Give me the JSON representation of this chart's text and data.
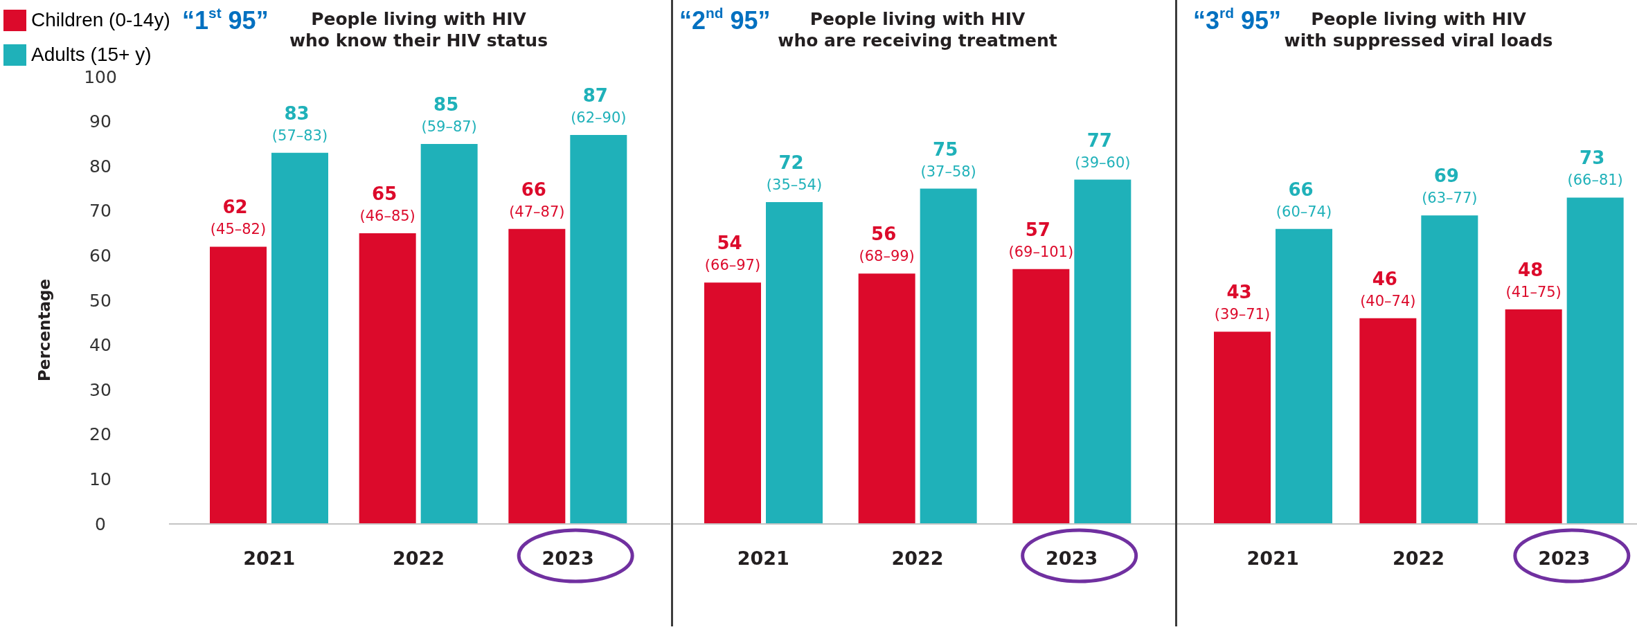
{
  "chart_data": [
    {
      "type": "bar",
      "title": "“1$^{st}$ 95”",
      "subtitle": "People living with HIV\nwho know their HIV status",
      "ylabel": "Percentage",
      "categories": [
        "2021",
        "2022",
        "2023"
      ],
      "series": [
        {
          "name": "Children (0-14y)",
          "color": "#dc0a2b",
          "values": [
            62,
            65,
            66
          ],
          "value_labels": [
            "62 (45–82)",
            "65 (46–85)",
            "66 (47–87)"
          ]
        },
        {
          "name": "Adults (15+ y)",
          "color": "#1fb1b9",
          "values": [
            83,
            85,
            87
          ],
          "value_labels": [
            "83 (57–83)",
            "85 (59–87)",
            "87 (62–90)"
          ]
        }
      ],
      "ylim": [
        0,
        100
      ],
      "yticks": [
        0,
        10,
        20,
        30,
        40,
        50,
        60,
        70,
        80,
        90,
        100
      ],
      "legend": "top left"
    },
    {
      "type": "bar",
      "title": "“2$^{nd}$ 95”",
      "subtitle": "People living with HIV\nwho are receiving treatment",
      "categories": [
        "2021",
        "2022",
        "2023"
      ],
      "series": [
        {
          "color": "#dc0a2b",
          "values": [
            54,
            56,
            57
          ],
          "value_labels": [
            "54 (66–97)",
            "56 (68–99)",
            "57 (69–101)"
          ]
        },
        {
          "color": "#1fb1b9",
          "values": [
            72,
            75,
            77
          ],
          "value_labels": [
            "72 (35–54)",
            "75 (37–58)",
            "77 (39–60)"
          ]
        }
      ],
      "ylim": [
        0,
        100
      ],
      "yticks": [
        0,
        10,
        20,
        30,
        40,
        50,
        60,
        70,
        80,
        90,
        100
      ],
      "tick_labels": "x"
    },
    {
      "type": "bar",
      "title": "“3$^{rd}$ 95”",
      "subtitle": "People living with HIV\nwith suppressed viral loads",
      "categories": [
        "2021",
        "2022",
        "2023"
      ],
      "series": [
        {
          "color": "#dc0a2b",
          "values": [
            43,
            46,
            48
          ],
          "value_labels": [
            "43 (39–71)",
            "46 (40–74)",
            "48 (41–75)"
          ]
        },
        {
          "color": "#1fb1b9",
          "values": [
            66,
            69,
            73
          ],
          "value_labels": [
            "66 (60–74)",
            "69 (63–77)",
            "73 (66–81)"
          ]
        }
      ],
      "ylim": [
        0,
        100
      ],
      "yticks": [
        0,
        10,
        20,
        30,
        40,
        50,
        60,
        70,
        80,
        90,
        100
      ],
      "tick_labels": "x"
    }
  ]
}
